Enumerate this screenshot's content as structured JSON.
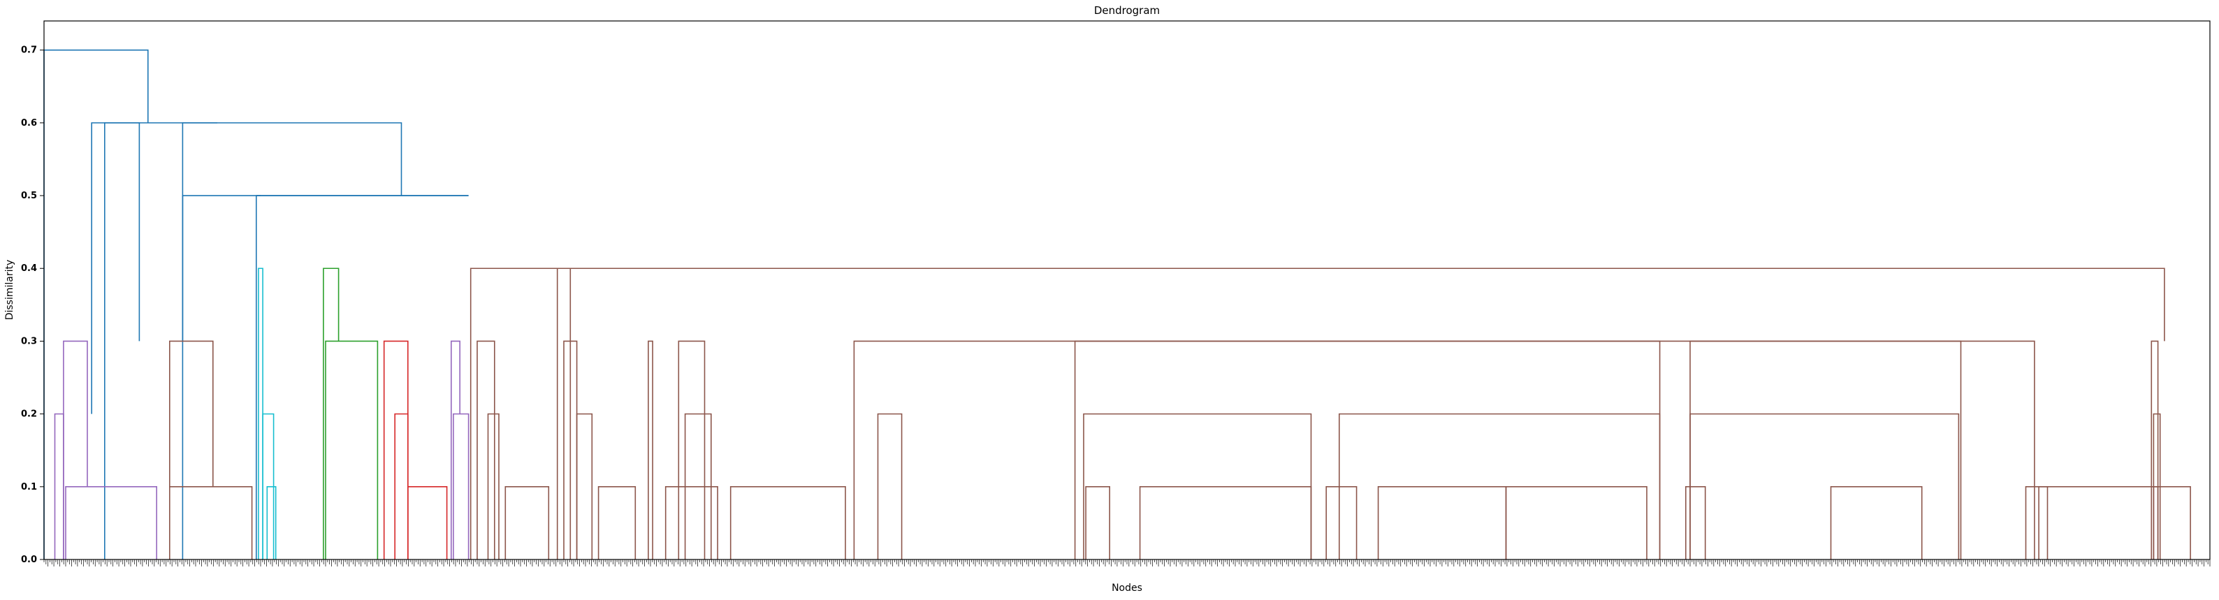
{
  "chart_data": {
    "type": "dendrogram",
    "title": "Dendrogram",
    "xlabel": "Nodes",
    "ylabel": "Dissimilarity",
    "ylim": [
      0.0,
      0.74
    ],
    "yticks": [
      "0.0",
      "0.1",
      "0.2",
      "0.3",
      "0.4",
      "0.5",
      "0.6",
      "0.7"
    ],
    "ytick_values": [
      0.0,
      0.1,
      0.2,
      0.3,
      0.4,
      0.5,
      0.6,
      0.7
    ],
    "leaf_labels": "dense, unreadable",
    "colors": {
      "root": "#1f77b4",
      "purple": "#9467bd",
      "cyan": "#17becf",
      "green": "#2ca02c",
      "red": "#d62728",
      "brown": "#8c564b",
      "axis": "#000000"
    },
    "links": [
      {
        "c": "root",
        "xl": 0.0,
        "xr": 4.8,
        "h": 0.7,
        "yl": 0.0,
        "yr": 0.6
      },
      {
        "c": "root",
        "xl": 2.2,
        "xr": 8.0,
        "h": 0.6,
        "yl": 0.2,
        "yr": 0.6
      },
      {
        "c": "root",
        "xl": 2.8,
        "xr": 4.4,
        "h": 0.6,
        "yl": 0.0,
        "yr": 0.3
      },
      {
        "c": "root",
        "xl": 6.4,
        "xr": 16.5,
        "h": 0.6,
        "yl": 0.0,
        "yr": 0.5
      },
      {
        "c": "root",
        "xl": 6.4,
        "xr": 19.6,
        "h": 0.5,
        "yl": 0.3,
        "yr": 0.5
      },
      {
        "c": "root",
        "xl": 9.8,
        "xr": 19.6,
        "h": 0.5,
        "yl": 0.5,
        "yr": 0.5
      },
      {
        "c": "root",
        "xl": 9.8,
        "xr": 10.0,
        "h": 0.5,
        "yl": 0.0,
        "yr": 0.5
      },
      {
        "c": "purple",
        "xl": 0.5,
        "xr": 0.9,
        "h": 0.2,
        "yl": 0.0,
        "yr": 0.0
      },
      {
        "c": "purple",
        "xl": 0.9,
        "xr": 2.0,
        "h": 0.3,
        "yl": 0.0,
        "yr": 0.1
      },
      {
        "c": "purple",
        "xl": 1.0,
        "xr": 5.2,
        "h": 0.1,
        "yl": 0.0,
        "yr": 0.0
      },
      {
        "c": "purple",
        "xl": 18.8,
        "xr": 19.2,
        "h": 0.3,
        "yl": 0.0,
        "yr": 0.2
      },
      {
        "c": "purple",
        "xl": 18.9,
        "xr": 19.6,
        "h": 0.2,
        "yl": 0.0,
        "yr": 0.0
      },
      {
        "c": "brown",
        "xl": 5.8,
        "xr": 7.8,
        "h": 0.3,
        "yl": 0.1,
        "yr": 0.1
      },
      {
        "c": "brown",
        "xl": 5.8,
        "xr": 9.6,
        "h": 0.1,
        "yl": 0.0,
        "yr": 0.0
      },
      {
        "c": "cyan",
        "xl": 9.9,
        "xr": 10.1,
        "h": 0.4,
        "yl": 0.0,
        "yr": 0.0
      },
      {
        "c": "cyan",
        "xl": 10.1,
        "xr": 10.6,
        "h": 0.2,
        "yl": 0.0,
        "yr": 0.0
      },
      {
        "c": "cyan",
        "xl": 10.3,
        "xr": 10.7,
        "h": 0.1,
        "yl": 0.0,
        "yr": 0.0
      },
      {
        "c": "green",
        "xl": 12.9,
        "xr": 13.6,
        "h": 0.4,
        "yl": 0.0,
        "yr": 0.3
      },
      {
        "c": "green",
        "xl": 13.0,
        "xr": 15.4,
        "h": 0.3,
        "yl": 0.0,
        "yr": 0.0
      },
      {
        "c": "red",
        "xl": 15.7,
        "xr": 16.8,
        "h": 0.3,
        "yl": 0.0,
        "yr": 0.0
      },
      {
        "c": "red",
        "xl": 16.2,
        "xr": 16.8,
        "h": 0.2,
        "yl": 0.0,
        "yr": 0.0
      },
      {
        "c": "red",
        "xl": 16.8,
        "xr": 18.6,
        "h": 0.1,
        "yl": 0.0,
        "yr": 0.0
      },
      {
        "c": "brown",
        "xl": 19.7,
        "xr": 97.9,
        "h": 0.4,
        "yl": 0.0,
        "yr": 0.3
      },
      {
        "c": "brown",
        "xl": 37.4,
        "xr": 88.5,
        "h": 0.3,
        "yl": 0.0,
        "yr": 0.0
      },
      {
        "c": "brown",
        "xl": 47.6,
        "xr": 74.6,
        "h": 0.3,
        "yl": 0.0,
        "yr": 0.0
      },
      {
        "c": "brown",
        "xl": 48.0,
        "xr": 58.5,
        "h": 0.2,
        "yl": 0.0,
        "yr": 0.0
      },
      {
        "c": "brown",
        "xl": 59.8,
        "xr": 74.6,
        "h": 0.2,
        "yl": 0.0,
        "yr": 0.0
      },
      {
        "c": "brown",
        "xl": 76.0,
        "xr": 88.4,
        "h": 0.2,
        "yl": 0.0,
        "yr": 0.0
      },
      {
        "c": "brown",
        "xl": 76.0,
        "xr": 91.9,
        "h": 0.3,
        "yl": 0.0,
        "yr": 0.0
      },
      {
        "c": "brown",
        "xl": 50.6,
        "xr": 58.5,
        "h": 0.1,
        "yl": 0.0,
        "yr": 0.0
      },
      {
        "c": "brown",
        "xl": 61.6,
        "xr": 67.5,
        "h": 0.1,
        "yl": 0.0,
        "yr": 0.0
      },
      {
        "c": "brown",
        "xl": 67.5,
        "xr": 74.0,
        "h": 0.1,
        "yl": 0.0,
        "yr": 0.0
      },
      {
        "c": "brown",
        "xl": 82.5,
        "xr": 86.7,
        "h": 0.1,
        "yl": 0.0,
        "yr": 0.0
      },
      {
        "c": "brown",
        "xl": 92.1,
        "xr": 97.6,
        "h": 0.1,
        "yl": 0.0,
        "yr": 0.0
      },
      {
        "c": "brown",
        "xl": 21.3,
        "xr": 23.3,
        "h": 0.1,
        "yl": 0.0,
        "yr": 0.0
      },
      {
        "c": "brown",
        "xl": 25.6,
        "xr": 27.3,
        "h": 0.1,
        "yl": 0.0,
        "yr": 0.0
      },
      {
        "c": "brown",
        "xl": 28.7,
        "xr": 31.1,
        "h": 0.1,
        "yl": 0.0,
        "yr": 0.0
      },
      {
        "c": "brown",
        "xl": 31.7,
        "xr": 37.0,
        "h": 0.1,
        "yl": 0.0,
        "yr": 0.0
      },
      {
        "c": "brown",
        "xl": 97.4,
        "xr": 99.1,
        "h": 0.1,
        "yl": 0.0,
        "yr": 0.0
      },
      {
        "c": "brown",
        "xl": 20.0,
        "xr": 20.8,
        "h": 0.3,
        "yl": 0.0,
        "yr": 0.0
      },
      {
        "c": "brown",
        "xl": 20.5,
        "xr": 21.0,
        "h": 0.2,
        "yl": 0.0,
        "yr": 0.0
      },
      {
        "c": "brown",
        "xl": 23.7,
        "xr": 24.3,
        "h": 0.4,
        "yl": 0.0,
        "yr": 0.0
      },
      {
        "c": "brown",
        "xl": 24.0,
        "xr": 24.6,
        "h": 0.3,
        "yl": 0.0,
        "yr": 0.0
      },
      {
        "c": "brown",
        "xl": 24.6,
        "xr": 25.3,
        "h": 0.2,
        "yl": 0.0,
        "yr": 0.0
      },
      {
        "c": "brown",
        "xl": 27.9,
        "xr": 28.1,
        "h": 0.3,
        "yl": 0.0,
        "yr": 0.0
      },
      {
        "c": "brown",
        "xl": 29.3,
        "xr": 30.5,
        "h": 0.3,
        "yl": 0.0,
        "yr": 0.0
      },
      {
        "c": "brown",
        "xl": 29.6,
        "xr": 30.8,
        "h": 0.2,
        "yl": 0.0,
        "yr": 0.0
      },
      {
        "c": "brown",
        "xl": 38.5,
        "xr": 39.6,
        "h": 0.2,
        "yl": 0.0,
        "yr": 0.0
      },
      {
        "c": "brown",
        "xl": 97.3,
        "xr": 97.6,
        "h": 0.3,
        "yl": 0.0,
        "yr": 0.0
      },
      {
        "c": "brown",
        "xl": 97.4,
        "xr": 97.7,
        "h": 0.2,
        "yl": 0.0,
        "yr": 0.0
      },
      {
        "c": "brown",
        "xl": 48.1,
        "xr": 49.2,
        "h": 0.1,
        "yl": 0.0,
        "yr": 0.0
      },
      {
        "c": "brown",
        "xl": 59.2,
        "xr": 60.6,
        "h": 0.1,
        "yl": 0.0,
        "yr": 0.0
      },
      {
        "c": "brown",
        "xl": 75.8,
        "xr": 76.7,
        "h": 0.1,
        "yl": 0.0,
        "yr": 0.0
      },
      {
        "c": "brown",
        "xl": 91.5,
        "xr": 92.5,
        "h": 0.1,
        "yl": 0.0,
        "yr": 0.0
      }
    ]
  }
}
